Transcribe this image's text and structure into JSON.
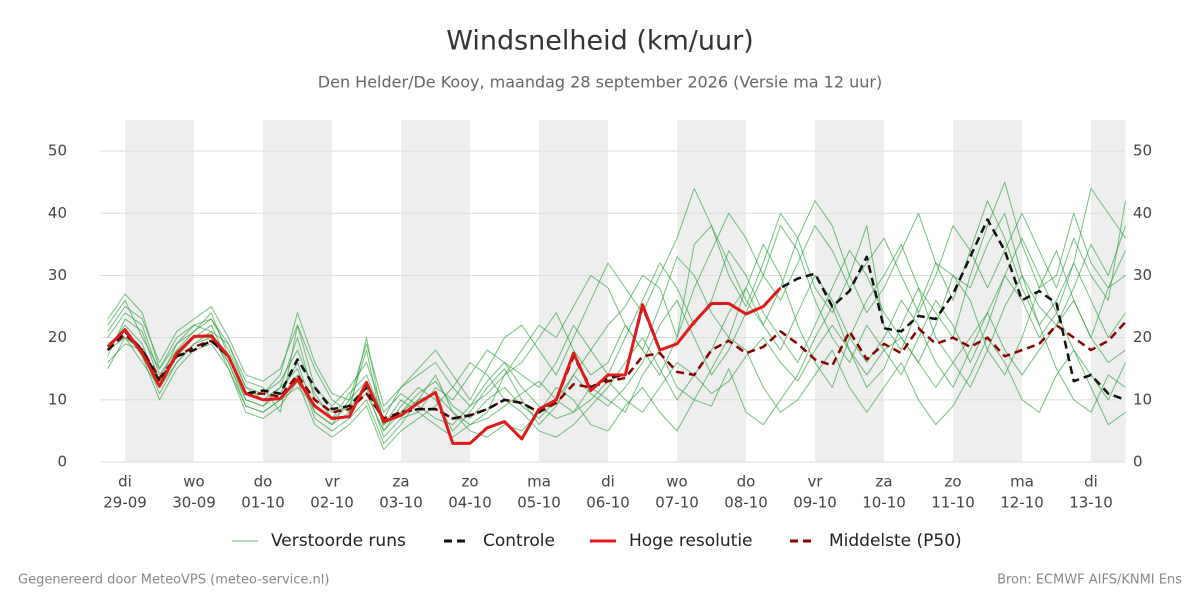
{
  "chart_data": {
    "type": "line",
    "title": "Windsnelheid (km/uur)",
    "subtitle": "Den Helder/De Kooy, maandag 28 september 2026 (Versie ma 12 uur)",
    "footer_left": "Gegenereerd door MeteoVPS (meteo-service.nl)",
    "footer_right": "Bron: ECMWF AIFS/KNMI Ens",
    "categories": [
      null,
      [
        "di",
        "29-09"
      ],
      null,
      null,
      null,
      [
        "wo",
        "30-09"
      ],
      null,
      null,
      null,
      [
        "do",
        "01-10"
      ],
      null,
      null,
      null,
      [
        "vr",
        "02-10"
      ],
      null,
      null,
      null,
      [
        "za",
        "03-10"
      ],
      null,
      null,
      null,
      [
        "zo",
        "04-10"
      ],
      null,
      null,
      null,
      [
        "ma",
        "05-10"
      ],
      null,
      null,
      null,
      [
        "di",
        "06-10"
      ],
      null,
      null,
      null,
      [
        "wo",
        "07-10"
      ],
      null,
      null,
      null,
      [
        "do",
        "08-10"
      ],
      null,
      null,
      null,
      [
        "vr",
        "09-10"
      ],
      null,
      null,
      null,
      [
        "za",
        "10-10"
      ],
      null,
      null,
      null,
      [
        "zo",
        "11-10"
      ],
      null,
      null,
      null,
      [
        "ma",
        "12-10"
      ],
      null,
      null,
      null,
      [
        "di",
        "13-10"
      ],
      null,
      null
    ],
    "ylim": [
      0,
      55
    ],
    "yticks": [
      0,
      10,
      20,
      30,
      40,
      50
    ],
    "grid": true,
    "series": [
      {
        "name": "Verstoorde runs",
        "color": "#2e9e3e",
        "members": [
          [
            20,
            24,
            22,
            14,
            18,
            21,
            23,
            18,
            12,
            10,
            12,
            20,
            10,
            8,
            9,
            18,
            5,
            9,
            12,
            10,
            5,
            8,
            12,
            15,
            10,
            6,
            9,
            14,
            18,
            22,
            25,
            30,
            28,
            20,
            35,
            38,
            30,
            25,
            32,
            40,
            36,
            28,
            24,
            30,
            38,
            22,
            18,
            25,
            32,
            30,
            28,
            35,
            40,
            30,
            25,
            22,
            28,
            35,
            30,
            38
          ],
          [
            16,
            19,
            18,
            11,
            16,
            19,
            20,
            16,
            9,
            8,
            10,
            14,
            8,
            6,
            8,
            12,
            4,
            7,
            8,
            12,
            10,
            14,
            18,
            16,
            12,
            9,
            7,
            8,
            12,
            10,
            8,
            14,
            18,
            12,
            10,
            9,
            15,
            8,
            6,
            10,
            14,
            20,
            25,
            18,
            12,
            15,
            22,
            28,
            20,
            16,
            12,
            18,
            25,
            30,
            22,
            15,
            10,
            8,
            14,
            12
          ],
          [
            22,
            26,
            20,
            15,
            20,
            22,
            21,
            19,
            13,
            12,
            8,
            22,
            15,
            10,
            8,
            20,
            6,
            10,
            8,
            6,
            4,
            6,
            8,
            14,
            18,
            22,
            20,
            25,
            30,
            28,
            22,
            18,
            25,
            33,
            30,
            24,
            20,
            28,
            35,
            30,
            22,
            16,
            12,
            20,
            26,
            30,
            35,
            28,
            24,
            20,
            30,
            38,
            45,
            35,
            28,
            30,
            40,
            32,
            28,
            30
          ],
          [
            18,
            22,
            19,
            12,
            17,
            20,
            22,
            16,
            10,
            9,
            12,
            15,
            7,
            5,
            7,
            10,
            3,
            6,
            10,
            14,
            8,
            5,
            4,
            6,
            5,
            8,
            12,
            10,
            6,
            5,
            9,
            12,
            8,
            5,
            10,
            15,
            20,
            18,
            12,
            8,
            10,
            14,
            18,
            12,
            8,
            12,
            16,
            10,
            6,
            9,
            14,
            20,
            16,
            10,
            8,
            14,
            18,
            12,
            6,
            8
          ],
          [
            17,
            23,
            21,
            13,
            19,
            21,
            24,
            17,
            11,
            11,
            13,
            18,
            11,
            7,
            11,
            14,
            7,
            12,
            15,
            18,
            14,
            10,
            15,
            20,
            22,
            18,
            14,
            20,
            26,
            32,
            28,
            24,
            30,
            36,
            44,
            38,
            32,
            26,
            22,
            28,
            36,
            42,
            38,
            30,
            24,
            28,
            34,
            40,
            32,
            26,
            34,
            42,
            36,
            28,
            22,
            26,
            32,
            44,
            40,
            36
          ],
          [
            19,
            21,
            17,
            10,
            15,
            18,
            19,
            15,
            8,
            7,
            9,
            13,
            6,
            4,
            6,
            9,
            2,
            5,
            7,
            9,
            12,
            16,
            14,
            10,
            8,
            5,
            4,
            6,
            9,
            12,
            16,
            20,
            15,
            10,
            14,
            18,
            24,
            28,
            22,
            18,
            24,
            30,
            26,
            20,
            16,
            20,
            26,
            22,
            16,
            12,
            18,
            24,
            30,
            26,
            20,
            24,
            32,
            26,
            20,
            24
          ],
          [
            21,
            25,
            23,
            16,
            21,
            23,
            25,
            20,
            14,
            13,
            15,
            22,
            12,
            9,
            12,
            16,
            8,
            11,
            9,
            7,
            6,
            9,
            13,
            16,
            14,
            12,
            16,
            22,
            18,
            14,
            20,
            26,
            32,
            28,
            22,
            26,
            34,
            30,
            24,
            20,
            16,
            22,
            28,
            34,
            30,
            24,
            20,
            16,
            22,
            30,
            26,
            18,
            14,
            20,
            28,
            34,
            26,
            20,
            28,
            34
          ],
          [
            15,
            20,
            16,
            12,
            16,
            19,
            21,
            15,
            9,
            8,
            10,
            12,
            9,
            7,
            9,
            11,
            5,
            8,
            11,
            13,
            9,
            7,
            10,
            12,
            9,
            7,
            10,
            14,
            11,
            9,
            12,
            16,
            22,
            26,
            20,
            14,
            18,
            24,
            30,
            38,
            34,
            26,
            20,
            16,
            22,
            18,
            14,
            20,
            26,
            22,
            16,
            22,
            30,
            36,
            30,
            24,
            18,
            14,
            10,
            16
          ],
          [
            23,
            27,
            24,
            15,
            19,
            22,
            23,
            19,
            12,
            11,
            14,
            24,
            16,
            11,
            10,
            19,
            9,
            12,
            14,
            16,
            12,
            9,
            11,
            14,
            16,
            20,
            24,
            18,
            14,
            16,
            22,
            18,
            14,
            20,
            28,
            34,
            40,
            36,
            30,
            26,
            32,
            38,
            34,
            28,
            32,
            36,
            30,
            24,
            30,
            38,
            34,
            28,
            34,
            40,
            34,
            28,
            36,
            30,
            26,
            42
          ],
          [
            18,
            20,
            18,
            13,
            17,
            20,
            20,
            17,
            10,
            9,
            11,
            16,
            8,
            6,
            10,
            13,
            6,
            8,
            10,
            11,
            8,
            6,
            7,
            9,
            11,
            13,
            10,
            8,
            10,
            13,
            10,
            8,
            12,
            16,
            14,
            11,
            13,
            17,
            20,
            16,
            13,
            18,
            22,
            18,
            14,
            18,
            20,
            16,
            12,
            16,
            20,
            24,
            18,
            14,
            18,
            22,
            26,
            20,
            16,
            18
          ]
        ]
      },
      {
        "name": "Controle",
        "color": "#111111",
        "dashed": true,
        "values": [
          18,
          21,
          18,
          13,
          17,
          18,
          19.5,
          17,
          11,
          11.5,
          11,
          16.5,
          12,
          8.5,
          9,
          12,
          6.5,
          8,
          8.5,
          8.5,
          7,
          7.5,
          8.5,
          10,
          9.5,
          8,
          10,
          17,
          12,
          13.5,
          14,
          25,
          18,
          19,
          22.5,
          25.5,
          25.5,
          23.8,
          25,
          28,
          29.5,
          30.3,
          25,
          27.5,
          33,
          21.5,
          21,
          23.5,
          23,
          27,
          33,
          39,
          34,
          26,
          27.5,
          25.5,
          13,
          14,
          11,
          10
        ]
      },
      {
        "name": "Hoge resolutie",
        "color": "#e0191b",
        "values": [
          18.5,
          21.3,
          17.5,
          12.2,
          17.5,
          20.2,
          20.3,
          17,
          11,
          10,
          10.2,
          13.3,
          9,
          7,
          7.3,
          12.8,
          6.5,
          7.5,
          9.5,
          11.2,
          3,
          3,
          5.5,
          6.5,
          3.7,
          8.5,
          10,
          17.5,
          11.5,
          14,
          14,
          25.3,
          18,
          19,
          22.5,
          25.5,
          25.5,
          23.8,
          25,
          28,
          null,
          null,
          null,
          null,
          null,
          null,
          null,
          null,
          null,
          null,
          null,
          null,
          null,
          null,
          null,
          null,
          null,
          null,
          null,
          null
        ]
      },
      {
        "name": "Middelste (P50)",
        "color": "#8b0000",
        "dashed": true,
        "values": [
          18,
          20.5,
          18,
          13.5,
          17,
          18.5,
          19.5,
          17,
          11,
          11,
          10.5,
          14,
          10,
          8,
          8.5,
          11,
          7,
          8,
          8.5,
          8.5,
          7,
          7.5,
          8.5,
          10,
          9.5,
          8,
          9.5,
          12.5,
          12,
          13,
          13.5,
          17,
          17.5,
          14.5,
          14,
          18,
          19.5,
          17.5,
          18.5,
          21,
          19,
          16.5,
          15.5,
          21,
          16.5,
          19,
          17.5,
          21.5,
          19,
          20,
          18.5,
          20,
          17,
          18,
          19,
          22,
          20,
          18,
          19.5,
          22.5
        ]
      }
    ]
  }
}
